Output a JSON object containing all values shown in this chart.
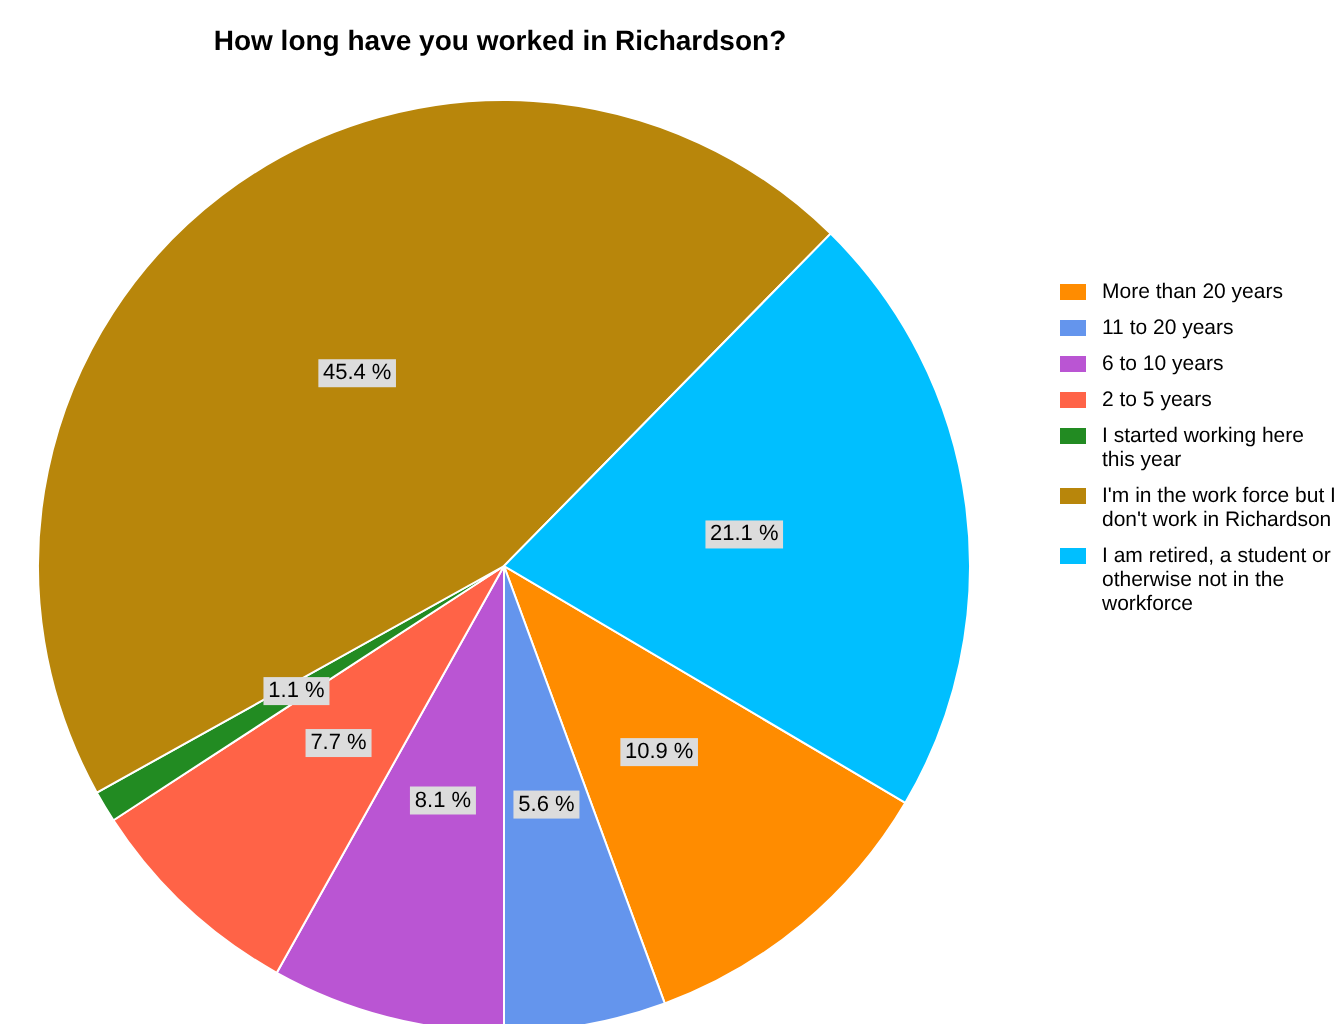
{
  "chart_data": {
    "type": "pie",
    "title": "How long have you worked in Richardson?",
    "categories": [
      "More than 20 years",
      "11 to 20 years",
      "6 to 10 years",
      "2 to 5 years",
      "I started working here this year",
      "I'm in the work force but I don't work in Richardson",
      "I am retired, a student or otherwise not in the workforce"
    ],
    "values": [
      10.9,
      5.6,
      8.1,
      7.7,
      1.1,
      45.4,
      21.1
    ],
    "value_labels": [
      "10.9 %",
      "5.6 %",
      "8.1 %",
      "7.7 %",
      "1.1 %",
      "45.4 %",
      "21.1 %"
    ],
    "colors": [
      "#ff8c00",
      "#6495ed",
      "#ba55d3",
      "#ff6347",
      "#228b22",
      "#b8860b",
      "#00bfff"
    ],
    "legend": "right"
  }
}
